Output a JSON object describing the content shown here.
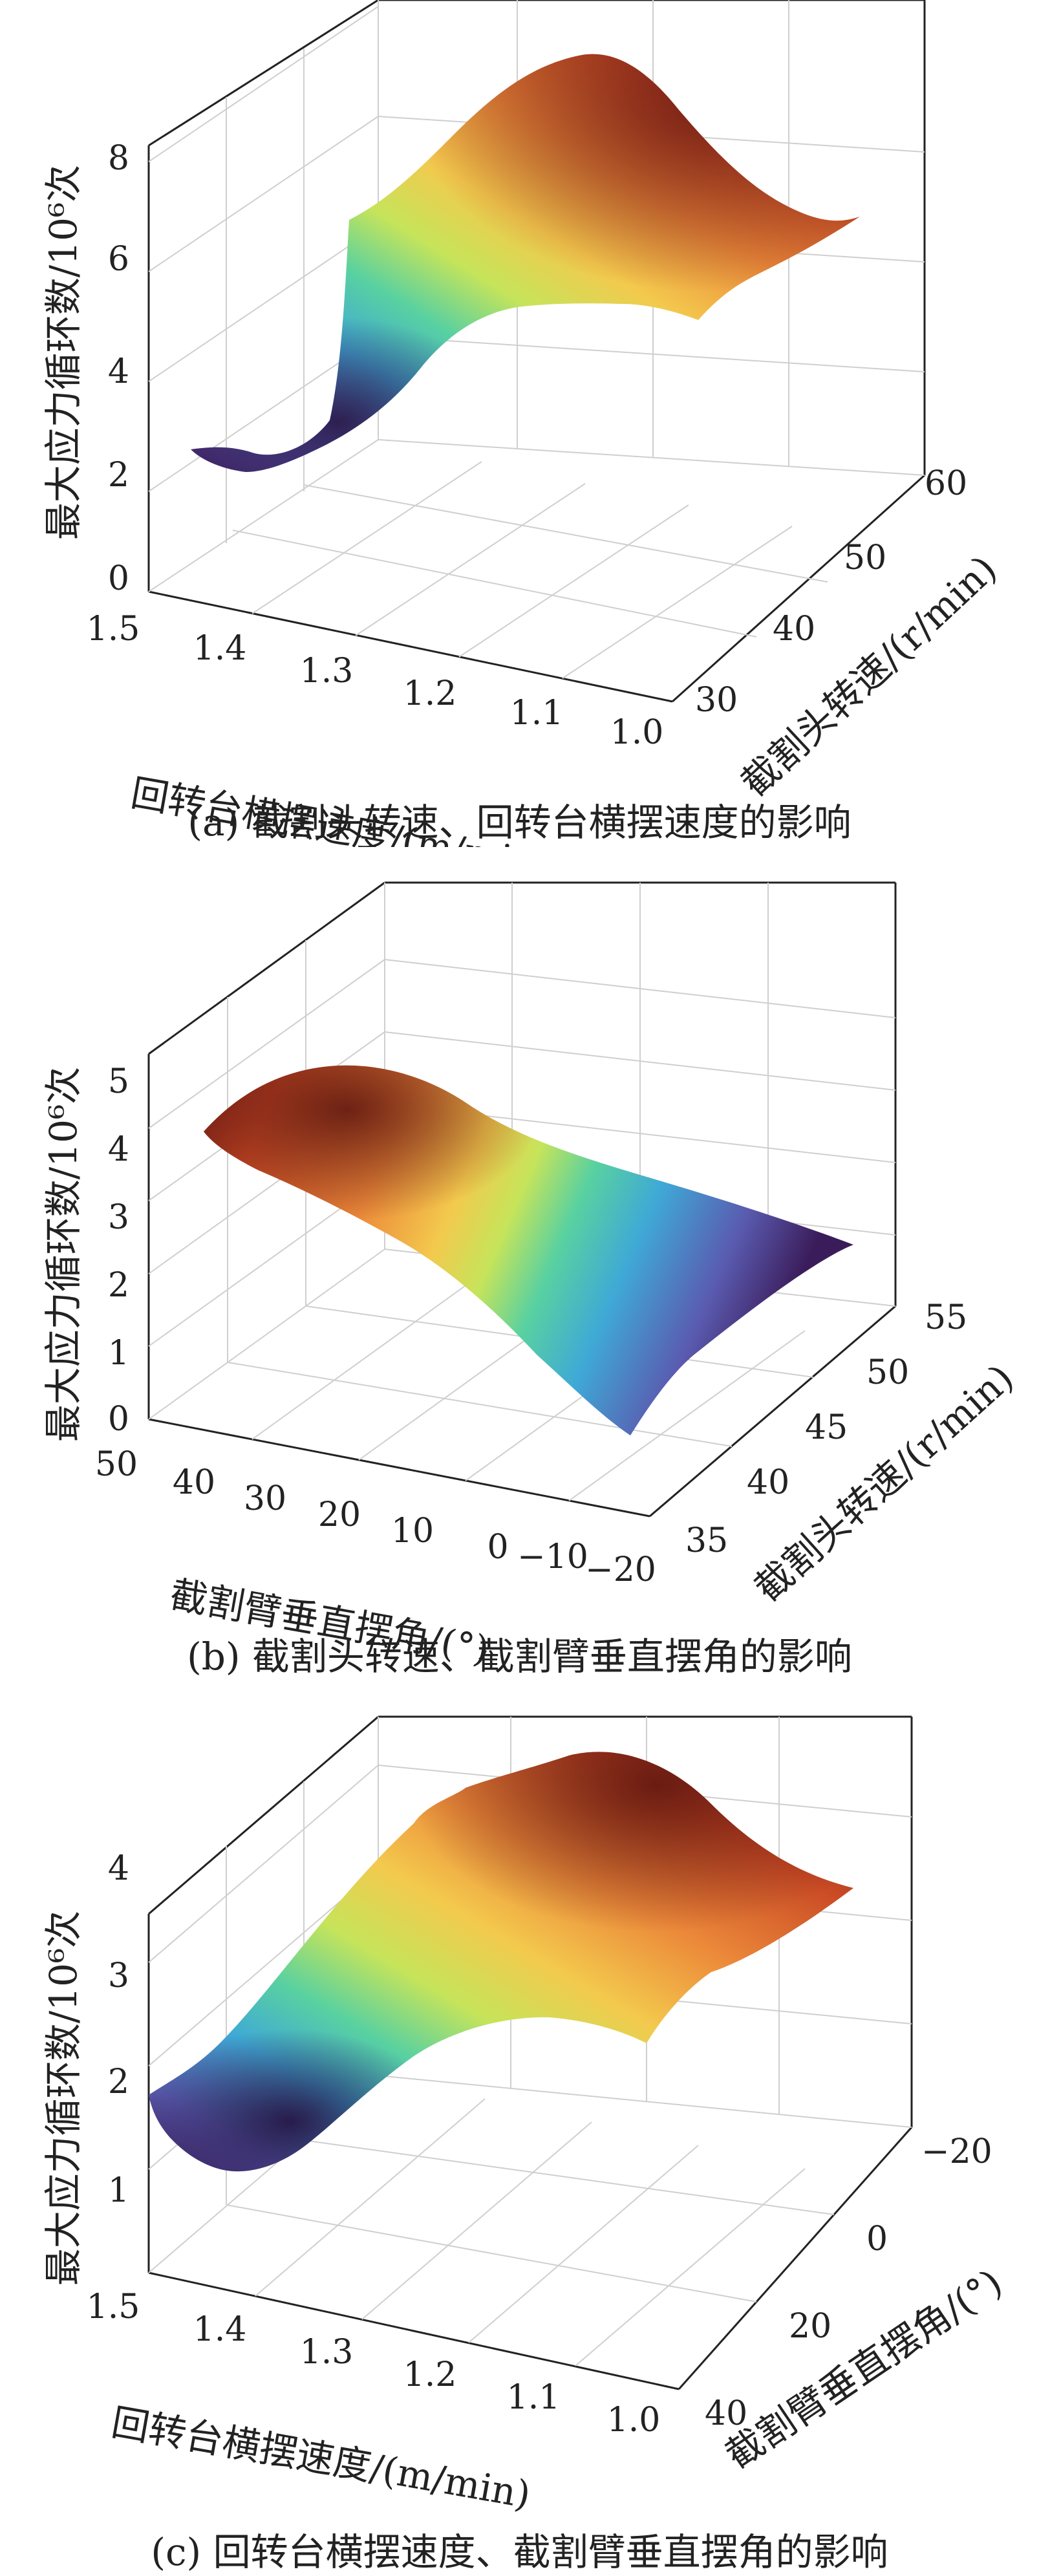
{
  "chart_data": [
    {
      "type": "surface3d",
      "caption": "(a)  截割头转速、回转台横摆速度的影响",
      "zlabel": "最大应力循环数/10⁶次",
      "xlabel": "回转台横摆速度/(m/min)",
      "ylabel": "截割头转速/(r/min)",
      "xlim": [
        1.0,
        1.5
      ],
      "ylim": [
        30,
        60
      ],
      "zlim": [
        0,
        8
      ],
      "xticks": [
        "1.5",
        "1.4",
        "1.3",
        "1.2",
        "1.1",
        "1.0"
      ],
      "yticks": [
        "30",
        "40",
        "50",
        "60"
      ],
      "zticks": [
        "0",
        "2",
        "4",
        "6",
        "8"
      ],
      "grid": true,
      "colormap": [
        "#3b1c5a",
        "#5a5bb0",
        "#3fa9d6",
        "#59d1a0",
        "#c6e45a",
        "#f3c94d",
        "#ec8a3a",
        "#c94a25",
        "#6e1a14"
      ]
    },
    {
      "type": "surface3d",
      "caption": "(b)  截割头转速、截割臂垂直摆角的影响",
      "zlabel": "最大应力循环数/10⁶次",
      "xlabel": "截割臂垂直摆角/(°)",
      "ylabel": "截割头转速/(r/min)",
      "xlim": [
        -20,
        50
      ],
      "ylim": [
        35,
        55
      ],
      "zlim": [
        0,
        5
      ],
      "xticks": [
        "50",
        "40",
        "30",
        "20",
        "10",
        "0",
        "−10",
        "−20"
      ],
      "yticks": [
        "35",
        "40",
        "45",
        "50",
        "55"
      ],
      "zticks": [
        "0",
        "1",
        "2",
        "3",
        "4",
        "5"
      ],
      "grid": true,
      "colormap": [
        "#3b1c5a",
        "#5a5bb0",
        "#3fa9d6",
        "#59d1a0",
        "#c6e45a",
        "#f3c94d",
        "#ec8a3a",
        "#c94a25",
        "#6e1a14"
      ]
    },
    {
      "type": "surface3d",
      "caption": "(c)  回转台横摆速度、截割臂垂直摆角的影响",
      "zlabel": "最大应力循环数/10⁶次",
      "xlabel": "回转台横摆速度/(m/min)",
      "ylabel": "截割臂垂直摆角/(°)",
      "xlim": [
        1.0,
        1.5
      ],
      "ylim": [
        -30,
        50
      ],
      "zlim": [
        1,
        4.5
      ],
      "xticks": [
        "1.5",
        "1.4",
        "1.3",
        "1.2",
        "1.1",
        "1.0"
      ],
      "yticks": [
        "40",
        "20",
        "0",
        "−20"
      ],
      "zticks": [
        "1",
        "2",
        "3",
        "4"
      ],
      "grid": true,
      "colormap": [
        "#3b1c5a",
        "#5a5bb0",
        "#3fa9d6",
        "#59d1a0",
        "#c6e45a",
        "#f3c94d",
        "#ec8a3a",
        "#c94a25",
        "#6e1a14"
      ]
    }
  ]
}
